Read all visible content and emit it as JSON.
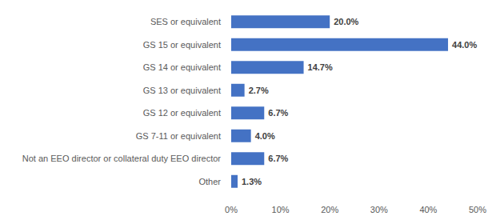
{
  "chart_data": {
    "type": "bar",
    "orientation": "horizontal",
    "categories": [
      "SES or equivalent",
      "GS 15 or equivalent",
      "GS 14 or equivalent",
      "GS 13 or equivalent",
      "GS 12 or equivalent",
      "GS 7-11 or equivalent",
      "Not an EEO director or collateral duty EEO director",
      "Other"
    ],
    "values": [
      20.0,
      44.0,
      14.7,
      2.7,
      6.7,
      4.0,
      6.7,
      1.3
    ],
    "value_labels": [
      "20.0%",
      "44.0%",
      "14.7%",
      "2.7%",
      "6.7%",
      "4.0%",
      "6.7%",
      "1.3%"
    ],
    "color": "#4472c4",
    "xlim": [
      0,
      50
    ],
    "xticks": [
      {
        "value": 0,
        "label": "0%"
      },
      {
        "value": 10,
        "label": "10%"
      },
      {
        "value": 20,
        "label": "20%"
      },
      {
        "value": 30,
        "label": "30%"
      },
      {
        "value": 40,
        "label": "40%"
      },
      {
        "value": 50,
        "label": "50%"
      }
    ],
    "grid": false,
    "data_labels": true
  }
}
